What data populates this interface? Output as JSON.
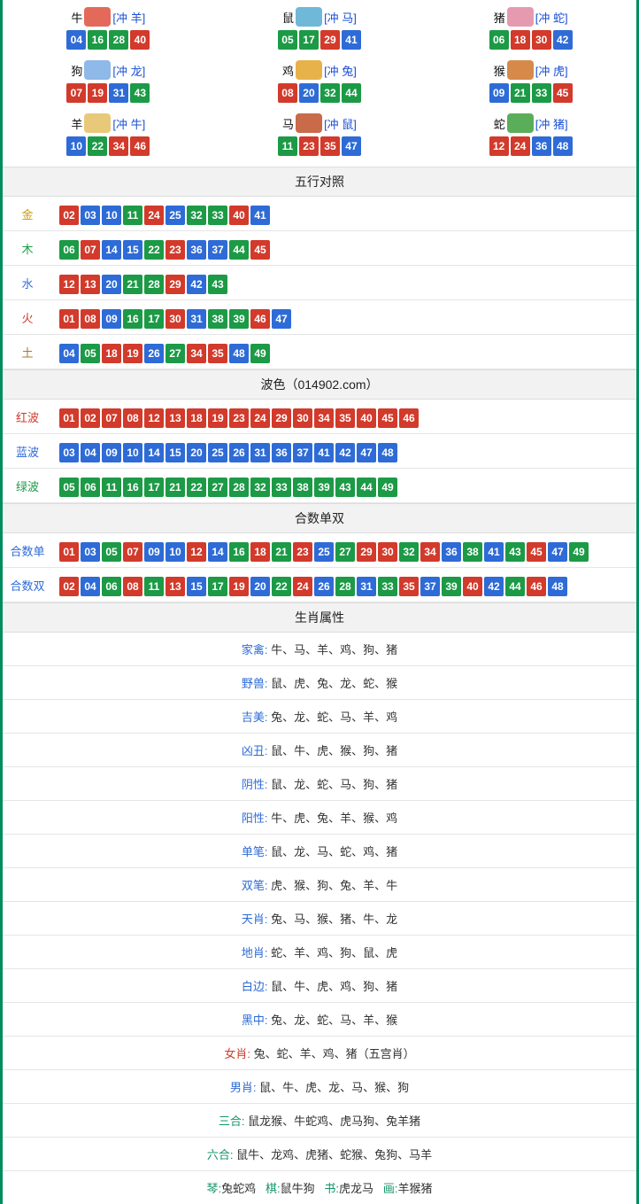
{
  "colors": {
    "red": "#d23a2b",
    "blue": "#2e6bd6",
    "green": "#1c9a46",
    "border": "#008c5e",
    "header_bg": "#f2f2f2"
  },
  "ball_color_map": {
    "01": "red",
    "02": "red",
    "07": "red",
    "08": "red",
    "12": "red",
    "13": "red",
    "18": "red",
    "19": "red",
    "23": "red",
    "24": "red",
    "29": "red",
    "30": "red",
    "34": "red",
    "35": "red",
    "40": "red",
    "45": "red",
    "46": "red",
    "03": "blue",
    "04": "blue",
    "09": "blue",
    "10": "blue",
    "14": "blue",
    "15": "blue",
    "20": "blue",
    "25": "blue",
    "26": "blue",
    "31": "blue",
    "36": "blue",
    "37": "blue",
    "41": "blue",
    "42": "blue",
    "47": "blue",
    "48": "blue",
    "05": "green",
    "06": "green",
    "11": "green",
    "16": "green",
    "17": "green",
    "21": "green",
    "22": "green",
    "27": "green",
    "28": "green",
    "32": "green",
    "33": "green",
    "38": "green",
    "39": "green",
    "43": "green",
    "44": "green",
    "49": "green"
  },
  "zodiac": [
    {
      "name": "牛",
      "chong": "[冲 羊]",
      "icon_color": "#e36a5a",
      "balls": [
        "04",
        "16",
        "28",
        "40"
      ]
    },
    {
      "name": "鼠",
      "chong": "[冲 马]",
      "icon_color": "#6fb8d8",
      "balls": [
        "05",
        "17",
        "29",
        "41"
      ]
    },
    {
      "name": "猪",
      "chong": "[冲 蛇]",
      "icon_color": "#e59ab0",
      "balls": [
        "06",
        "18",
        "30",
        "42"
      ]
    },
    {
      "name": "狗",
      "chong": "[冲 龙]",
      "icon_color": "#8fb9e8",
      "balls": [
        "07",
        "19",
        "31",
        "43"
      ]
    },
    {
      "name": "鸡",
      "chong": "[冲 兔]",
      "icon_color": "#e8b24a",
      "balls": [
        "08",
        "20",
        "32",
        "44"
      ]
    },
    {
      "name": "猴",
      "chong": "[冲 虎]",
      "icon_color": "#d68a4a",
      "balls": [
        "09",
        "21",
        "33",
        "45"
      ]
    },
    {
      "name": "羊",
      "chong": "[冲 牛]",
      "icon_color": "#e8c97a",
      "balls": [
        "10",
        "22",
        "34",
        "46"
      ]
    },
    {
      "name": "马",
      "chong": "[冲 鼠]",
      "icon_color": "#c96a4a",
      "balls": [
        "11",
        "23",
        "35",
        "47"
      ]
    },
    {
      "name": "蛇",
      "chong": "[冲 猪]",
      "icon_color": "#5aae5a",
      "balls": [
        "12",
        "24",
        "36",
        "48"
      ]
    }
  ],
  "sections": {
    "wuxing_title": "五行对照",
    "wuxing": [
      {
        "label": "金",
        "label_class": "lbl-gold",
        "balls": [
          "02",
          "03",
          "10",
          "11",
          "24",
          "25",
          "32",
          "33",
          "40",
          "41"
        ]
      },
      {
        "label": "木",
        "label_class": "lbl-wood",
        "balls": [
          "06",
          "07",
          "14",
          "15",
          "22",
          "23",
          "36",
          "37",
          "44",
          "45"
        ]
      },
      {
        "label": "水",
        "label_class": "lbl-water",
        "balls": [
          "12",
          "13",
          "20",
          "21",
          "28",
          "29",
          "42",
          "43"
        ]
      },
      {
        "label": "火",
        "label_class": "lbl-fire",
        "balls": [
          "01",
          "08",
          "09",
          "16",
          "17",
          "30",
          "31",
          "38",
          "39",
          "46",
          "47"
        ]
      },
      {
        "label": "土",
        "label_class": "lbl-earth",
        "balls": [
          "04",
          "05",
          "18",
          "19",
          "26",
          "27",
          "34",
          "35",
          "48",
          "49"
        ]
      }
    ],
    "bose_title": "波色（014902.com）",
    "bose": [
      {
        "label": "红波",
        "label_class": "lbl-red",
        "balls": [
          "01",
          "02",
          "07",
          "08",
          "12",
          "13",
          "18",
          "19",
          "23",
          "24",
          "29",
          "30",
          "34",
          "35",
          "40",
          "45",
          "46"
        ]
      },
      {
        "label": "蓝波",
        "label_class": "lbl-blue",
        "balls": [
          "03",
          "04",
          "09",
          "10",
          "14",
          "15",
          "20",
          "25",
          "26",
          "31",
          "36",
          "37",
          "41",
          "42",
          "47",
          "48"
        ]
      },
      {
        "label": "绿波",
        "label_class": "lbl-green",
        "balls": [
          "05",
          "06",
          "11",
          "16",
          "17",
          "21",
          "22",
          "27",
          "28",
          "32",
          "33",
          "38",
          "39",
          "43",
          "44",
          "49"
        ]
      }
    ],
    "heshu_title": "合数单双",
    "heshu": [
      {
        "label": "合数单",
        "label_class": "lbl-blue2",
        "balls": [
          "01",
          "03",
          "05",
          "07",
          "09",
          "10",
          "12",
          "14",
          "16",
          "18",
          "21",
          "23",
          "25",
          "27",
          "29",
          "30",
          "32",
          "34",
          "36",
          "38",
          "41",
          "43",
          "45",
          "47",
          "49"
        ]
      },
      {
        "label": "合数双",
        "label_class": "lbl-blue2",
        "balls": [
          "02",
          "04",
          "06",
          "08",
          "11",
          "13",
          "15",
          "17",
          "19",
          "20",
          "22",
          "24",
          "26",
          "28",
          "31",
          "33",
          "35",
          "37",
          "39",
          "40",
          "42",
          "44",
          "46",
          "48"
        ]
      }
    ],
    "attr_title": "生肖属性",
    "attrs": [
      {
        "key": "家禽",
        "key_class": "",
        "val": "牛、马、羊、鸡、狗、猪"
      },
      {
        "key": "野兽",
        "key_class": "",
        "val": "鼠、虎、兔、龙、蛇、猴"
      },
      {
        "key": "吉美",
        "key_class": "",
        "val": "兔、龙、蛇、马、羊、鸡"
      },
      {
        "key": "凶丑",
        "key_class": "",
        "val": "鼠、牛、虎、猴、狗、猪"
      },
      {
        "key": "阴性",
        "key_class": "",
        "val": "鼠、龙、蛇、马、狗、猪"
      },
      {
        "key": "阳性",
        "key_class": "",
        "val": "牛、虎、兔、羊、猴、鸡"
      },
      {
        "key": "单笔",
        "key_class": "",
        "val": "鼠、龙、马、蛇、鸡、猪"
      },
      {
        "key": "双笔",
        "key_class": "",
        "val": "虎、猴、狗、兔、羊、牛"
      },
      {
        "key": "天肖",
        "key_class": "",
        "val": "兔、马、猴、猪、牛、龙"
      },
      {
        "key": "地肖",
        "key_class": "",
        "val": "蛇、羊、鸡、狗、鼠、虎"
      },
      {
        "key": "白边",
        "key_class": "",
        "val": "鼠、牛、虎、鸡、狗、猪"
      },
      {
        "key": "黑中",
        "key_class": "",
        "val": "兔、龙、蛇、马、羊、猴"
      },
      {
        "key": "女肖",
        "key_class": "red",
        "val": "兔、蛇、羊、鸡、猪（五宫肖）"
      },
      {
        "key": "男肖",
        "key_class": "",
        "val": "鼠、牛、虎、龙、马、猴、狗"
      },
      {
        "key": "三合",
        "key_class": "green",
        "val": "鼠龙猴、牛蛇鸡、虎马狗、兔羊猪"
      },
      {
        "key": "六合",
        "key_class": "green",
        "val": "鼠牛、龙鸡、虎猪、蛇猴、兔狗、马羊"
      }
    ],
    "bottom_row": [
      {
        "k": "琴",
        "v": "兔蛇鸡"
      },
      {
        "k": "棋",
        "v": "鼠牛狗"
      },
      {
        "k": "书",
        "v": "虎龙马"
      },
      {
        "k": "画",
        "v": "羊猴猪"
      }
    ]
  }
}
